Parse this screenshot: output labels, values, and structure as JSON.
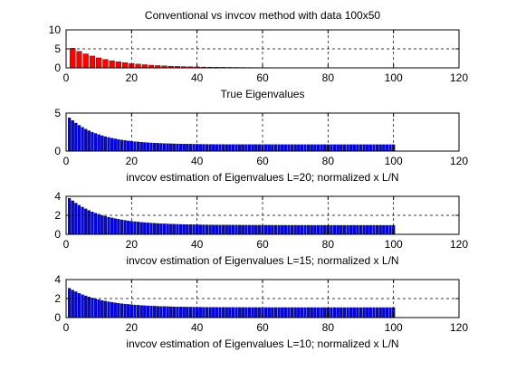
{
  "title": "Conventional vs invcov method with data 100x50",
  "chart_data": [
    {
      "type": "bar",
      "xlabel": "True Eigenvalues",
      "xlim": [
        0,
        120
      ],
      "ylim": [
        0,
        10
      ],
      "xticks": [
        0,
        20,
        40,
        60,
        80,
        100,
        120
      ],
      "yticks": [
        0,
        5,
        10
      ],
      "grid": true,
      "colors": {
        "face": "#ff0000",
        "edge": "#000000"
      },
      "start": 6.1,
      "decay": 0.085,
      "floor": 0.05,
      "n_bars": 50,
      "x_step": 2
    },
    {
      "type": "bar",
      "xlabel": "invcov estimation of Eigenvalues L=20; normalized x L/N",
      "xlim": [
        0,
        120
      ],
      "ylim": [
        0,
        5
      ],
      "xticks": [
        0,
        20,
        40,
        60,
        80,
        100,
        120
      ],
      "yticks": [
        0,
        5
      ],
      "grid": true,
      "colors": {
        "face": "#0000ff",
        "edge": "#000000"
      },
      "start": 4.8,
      "decay": 0.11,
      "floor": 0.85,
      "n_bars": 100,
      "x_step": 1
    },
    {
      "type": "bar",
      "xlabel": "invcov estimation of Eigenvalues L=15; normalized x L/N",
      "xlim": [
        0,
        120
      ],
      "ylim": [
        0,
        4
      ],
      "xticks": [
        0,
        20,
        40,
        60,
        80,
        100,
        120
      ],
      "yticks": [
        0,
        2,
        4
      ],
      "grid": true,
      "colors": {
        "face": "#0000ff",
        "edge": "#000000"
      },
      "start": 4.1,
      "decay": 0.1,
      "floor": 0.95,
      "n_bars": 100,
      "x_step": 1
    },
    {
      "type": "bar",
      "xlabel": "invcov estimation of Eigenvalues L=10; normalized x L/N",
      "xlim": [
        0,
        120
      ],
      "ylim": [
        0,
        4
      ],
      "xticks": [
        0,
        20,
        40,
        60,
        80,
        100,
        120
      ],
      "yticks": [
        0,
        2,
        4
      ],
      "grid": true,
      "colors": {
        "face": "#0000ff",
        "edge": "#000000"
      },
      "start": 3.3,
      "decay": 0.1,
      "floor": 1.05,
      "n_bars": 100,
      "x_step": 1
    }
  ]
}
